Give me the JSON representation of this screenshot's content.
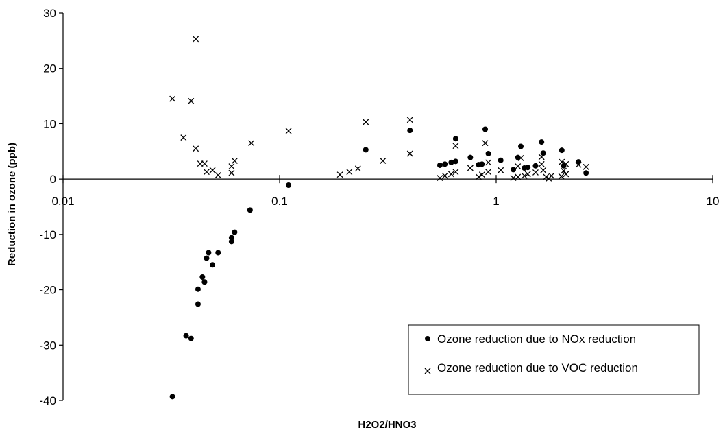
{
  "chart_data": {
    "type": "scatter",
    "title": "",
    "xlabel": "H2O2/HNO3",
    "ylabel": "Reduction in ozone (ppb)",
    "x_scale": "log",
    "xlim": [
      0.01,
      10
    ],
    "ylim": [
      -40,
      30
    ],
    "x_ticks": [
      {
        "value": 0.01,
        "label": "0.01"
      },
      {
        "value": 0.1,
        "label": "0.1"
      },
      {
        "value": 1,
        "label": "1"
      },
      {
        "value": 10,
        "label": "10"
      }
    ],
    "y_ticks": [
      {
        "value": 30,
        "label": "30"
      },
      {
        "value": 20,
        "label": "20"
      },
      {
        "value": 10,
        "label": "10"
      },
      {
        "value": 0,
        "label": "0"
      },
      {
        "value": -10,
        "label": "-10"
      },
      {
        "value": -20,
        "label": "-20"
      },
      {
        "value": -30,
        "label": "-30"
      },
      {
        "value": -40,
        "label": "-40"
      }
    ],
    "grid": false,
    "legend_position": "bottom-right",
    "series": [
      {
        "name": "Ozone reduction due to NOx reduction",
        "marker": "dot",
        "color": "#000000",
        "points": [
          [
            0.032,
            -39.3
          ],
          [
            0.037,
            -28.3
          ],
          [
            0.039,
            -28.8
          ],
          [
            0.042,
            -22.6
          ],
          [
            0.042,
            -19.9
          ],
          [
            0.044,
            -17.7
          ],
          [
            0.045,
            -18.6
          ],
          [
            0.046,
            -14.3
          ],
          [
            0.047,
            -13.3
          ],
          [
            0.049,
            -15.5
          ],
          [
            0.052,
            -13.3
          ],
          [
            0.06,
            -11.3
          ],
          [
            0.06,
            -10.6
          ],
          [
            0.062,
            -9.6
          ],
          [
            0.073,
            -5.6
          ],
          [
            0.11,
            -1.1
          ],
          [
            0.25,
            5.3
          ],
          [
            0.4,
            8.8
          ],
          [
            0.55,
            2.5
          ],
          [
            0.58,
            2.7
          ],
          [
            0.62,
            3.0
          ],
          [
            0.65,
            3.2
          ],
          [
            0.65,
            7.3
          ],
          [
            0.76,
            3.9
          ],
          [
            0.83,
            2.6
          ],
          [
            0.86,
            2.7
          ],
          [
            0.89,
            9.0
          ],
          [
            0.92,
            4.6
          ],
          [
            1.05,
            3.4
          ],
          [
            1.2,
            1.7
          ],
          [
            1.26,
            3.9
          ],
          [
            1.3,
            5.9
          ],
          [
            1.35,
            2.0
          ],
          [
            1.4,
            2.1
          ],
          [
            1.52,
            2.4
          ],
          [
            1.62,
            6.7
          ],
          [
            1.65,
            4.7
          ],
          [
            2.01,
            5.2
          ],
          [
            2.05,
            2.4
          ],
          [
            2.4,
            3.1
          ],
          [
            2.6,
            1.1
          ]
        ]
      },
      {
        "name": "Ozone reduction due to VOC reduction",
        "marker": "x",
        "color": "#000000",
        "points": [
          [
            0.032,
            14.5
          ],
          [
            0.036,
            7.5
          ],
          [
            0.039,
            14.1
          ],
          [
            0.041,
            25.3
          ],
          [
            0.041,
            5.5
          ],
          [
            0.043,
            2.8
          ],
          [
            0.045,
            2.8
          ],
          [
            0.046,
            1.3
          ],
          [
            0.049,
            1.6
          ],
          [
            0.052,
            0.7
          ],
          [
            0.06,
            2.3
          ],
          [
            0.06,
            1.1
          ],
          [
            0.062,
            3.3
          ],
          [
            0.074,
            6.5
          ],
          [
            0.11,
            8.7
          ],
          [
            0.19,
            0.8
          ],
          [
            0.21,
            1.3
          ],
          [
            0.23,
            1.9
          ],
          [
            0.25,
            10.3
          ],
          [
            0.3,
            3.3
          ],
          [
            0.4,
            10.7
          ],
          [
            0.4,
            4.6
          ],
          [
            0.55,
            0.2
          ],
          [
            0.58,
            0.6
          ],
          [
            0.62,
            0.9
          ],
          [
            0.65,
            1.3
          ],
          [
            0.65,
            6.0
          ],
          [
            0.76,
            2.0
          ],
          [
            0.83,
            0.4
          ],
          [
            0.86,
            0.8
          ],
          [
            0.89,
            6.5
          ],
          [
            0.92,
            3.0
          ],
          [
            0.92,
            1.3
          ],
          [
            1.05,
            1.6
          ],
          [
            1.2,
            0.2
          ],
          [
            1.26,
            0.4
          ],
          [
            1.26,
            2.3
          ],
          [
            1.3,
            3.8
          ],
          [
            1.35,
            0.6
          ],
          [
            1.4,
            0.9
          ],
          [
            1.52,
            1.2
          ],
          [
            1.62,
            4.0
          ],
          [
            1.62,
            2.7
          ],
          [
            1.65,
            1.6
          ],
          [
            1.7,
            0.4
          ],
          [
            1.75,
            0.1
          ],
          [
            1.8,
            0.6
          ],
          [
            2.0,
            0.5
          ],
          [
            2.01,
            3.1
          ],
          [
            2.05,
            1.5
          ],
          [
            2.1,
            2.7
          ],
          [
            2.1,
            0.9
          ],
          [
            2.4,
            2.6
          ],
          [
            2.6,
            2.2
          ]
        ]
      }
    ]
  }
}
